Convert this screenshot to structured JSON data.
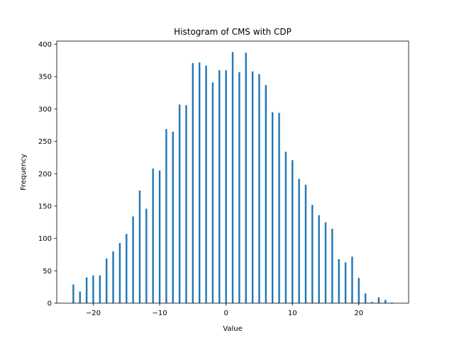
{
  "chart_data": {
    "type": "bar",
    "title": "Histogram of CMS with CDP",
    "xlabel": "Value",
    "ylabel": "Frequency",
    "xlim": [
      -25.5,
      27.5
    ],
    "ylim": [
      0,
      405
    ],
    "xticks": [
      -20,
      -10,
      0,
      10,
      20
    ],
    "yticks": [
      0,
      50,
      100,
      150,
      200,
      250,
      300,
      350,
      400
    ],
    "grid": false,
    "bar_color": "#1f77b4",
    "series": [
      {
        "x": [
          -23,
          -22,
          -21,
          -20,
          -19,
          -18,
          -17,
          -16,
          -15,
          -14,
          -13,
          -12,
          -11,
          -10,
          -9,
          -8,
          -7,
          -6,
          -5,
          -4,
          -3,
          -2,
          -1,
          0,
          1,
          2,
          3,
          4,
          5,
          6,
          7,
          8,
          9,
          10,
          11,
          12,
          13,
          14,
          15,
          16,
          17,
          18,
          19,
          20,
          21,
          22,
          23,
          24,
          25
        ],
        "values": [
          29,
          18,
          40,
          43,
          43,
          69,
          80,
          93,
          107,
          134,
          174,
          146,
          208,
          205,
          269,
          265,
          307,
          306,
          371,
          372,
          367,
          341,
          360,
          360,
          388,
          357,
          387,
          358,
          354,
          337,
          295,
          294,
          234,
          221,
          192,
          183,
          152,
          136,
          125,
          115,
          68,
          63,
          72,
          39,
          15,
          2,
          9,
          5,
          1
        ]
      }
    ]
  }
}
